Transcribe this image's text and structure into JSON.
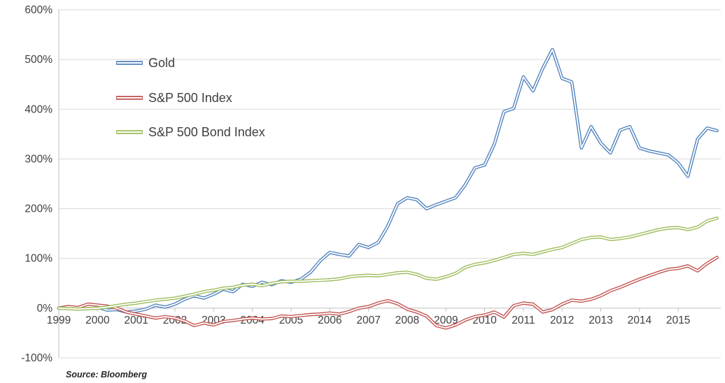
{
  "source_note": "Source: Bloomberg",
  "colors": {
    "gold_line": "#4F81BD",
    "sp500_line": "#C0504D",
    "bond_line": "#9BBB59",
    "gridline": "#D9D9D9",
    "axis_line": "#BFBFBF",
    "tick_text": "#3F3F3F"
  },
  "chart_data": {
    "type": "line",
    "line_style": "double-outline",
    "grid": true,
    "legend_position": "inside-top-left",
    "x_start": 1999,
    "x_step_years": 0.25,
    "xlim": [
      1999,
      2016.1
    ],
    "ylim": [
      -100,
      600
    ],
    "ytick_step": 100,
    "ytick_labels": [
      "600%",
      "500%",
      "400%",
      "300%",
      "200%",
      "100%",
      "0%",
      "-100%"
    ],
    "xtick_labels": [
      "1999",
      "2000",
      "2001",
      "2002",
      "2003",
      "2004",
      "2005",
      "2006",
      "2007",
      "2008",
      "2009",
      "2010",
      "2011",
      "2012",
      "2013",
      "2014",
      "2015"
    ],
    "series": [
      {
        "name": "Gold",
        "color": "#4F81BD",
        "values": [
          0,
          3,
          -2,
          4,
          2,
          -4,
          -3,
          -8,
          -6,
          -2,
          6,
          2,
          8,
          18,
          25,
          20,
          28,
          38,
          33,
          48,
          44,
          52,
          47,
          55,
          52,
          58,
          72,
          95,
          112,
          108,
          105,
          128,
          122,
          132,
          165,
          210,
          222,
          218,
          200,
          208,
          215,
          222,
          248,
          282,
          288,
          330,
          395,
          402,
          465,
          437,
          482,
          520,
          462,
          455,
          322,
          365,
          332,
          312,
          358,
          365,
          322,
          316,
          312,
          308,
          292,
          265,
          340,
          362,
          357
        ]
      },
      {
        "name": "S&P 500 Index",
        "color": "#C0504D",
        "values": [
          0,
          3,
          1,
          8,
          6,
          4,
          0,
          -8,
          -12,
          -16,
          -20,
          -17,
          -20,
          -26,
          -35,
          -30,
          -34,
          -27,
          -25,
          -22,
          -20,
          -22,
          -21,
          -16,
          -17,
          -15,
          -13,
          -12,
          -10,
          -12,
          -7,
          0,
          3,
          10,
          15,
          9,
          -2,
          -8,
          -16,
          -35,
          -40,
          -34,
          -24,
          -17,
          -14,
          -8,
          -18,
          5,
          10,
          8,
          -8,
          -3,
          8,
          16,
          14,
          18,
          25,
          35,
          42,
          50,
          58,
          65,
          72,
          78,
          80,
          85,
          75,
          90,
          102
        ]
      },
      {
        "name": "S&P 500 Bond Index",
        "color": "#9BBB59",
        "values": [
          0,
          -1,
          -2,
          -1,
          0,
          2,
          5,
          8,
          10,
          13,
          16,
          18,
          20,
          24,
          28,
          33,
          36,
          40,
          42,
          46,
          48,
          45,
          50,
          53,
          54,
          54,
          55,
          56,
          57,
          59,
          63,
          65,
          66,
          65,
          68,
          71,
          72,
          68,
          60,
          58,
          63,
          70,
          82,
          88,
          91,
          96,
          102,
          108,
          110,
          108,
          113,
          118,
          122,
          130,
          138,
          142,
          143,
          138,
          140,
          143,
          148,
          153,
          158,
          161,
          162,
          158,
          163,
          175,
          181
        ]
      }
    ]
  }
}
